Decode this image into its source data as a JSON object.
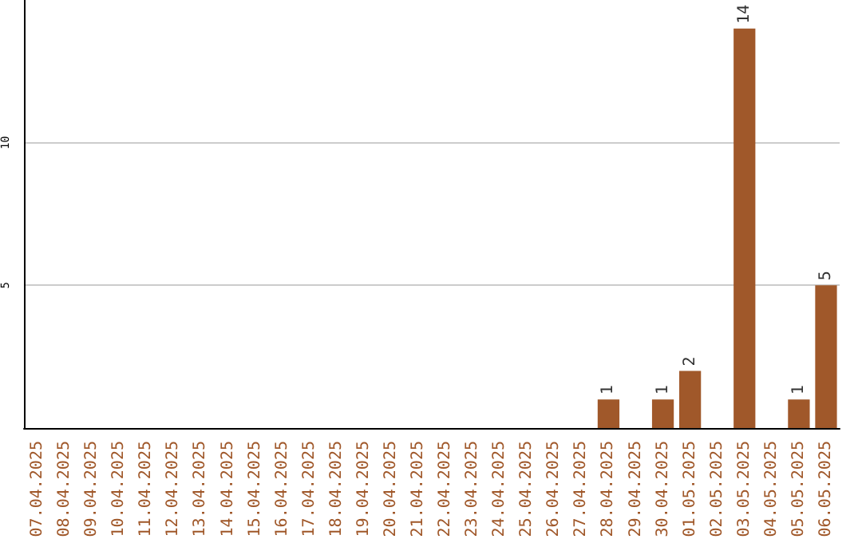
{
  "chart_data": {
    "type": "bar",
    "categories": [
      "07.04.2025",
      "08.04.2025",
      "09.04.2025",
      "10.04.2025",
      "11.04.2025",
      "12.04.2025",
      "13.04.2025",
      "14.04.2025",
      "15.04.2025",
      "16.04.2025",
      "17.04.2025",
      "18.04.2025",
      "19.04.2025",
      "20.04.2025",
      "21.04.2025",
      "22.04.2025",
      "23.04.2025",
      "24.04.2025",
      "25.04.2025",
      "26.04.2025",
      "27.04.2025",
      "28.04.2025",
      "29.04.2025",
      "30.04.2025",
      "01.05.2025",
      "02.05.2025",
      "03.05.2025",
      "04.05.2025",
      "05.05.2025",
      "06.05.2025"
    ],
    "values": [
      0,
      0,
      0,
      0,
      0,
      0,
      0,
      0,
      0,
      0,
      0,
      0,
      0,
      0,
      0,
      0,
      0,
      0,
      0,
      0,
      0,
      1,
      0,
      1,
      2,
      0,
      14,
      0,
      1,
      5
    ],
    "value_labels": [
      null,
      null,
      null,
      null,
      null,
      null,
      null,
      null,
      null,
      null,
      null,
      null,
      null,
      null,
      null,
      null,
      null,
      null,
      null,
      null,
      null,
      "1",
      null,
      "1",
      "2",
      null,
      "14",
      null,
      "1",
      "5"
    ],
    "color": "#a0582a",
    "ylim": [
      0,
      15
    ],
    "yticks": [
      5,
      10
    ],
    "grid": "y"
  }
}
